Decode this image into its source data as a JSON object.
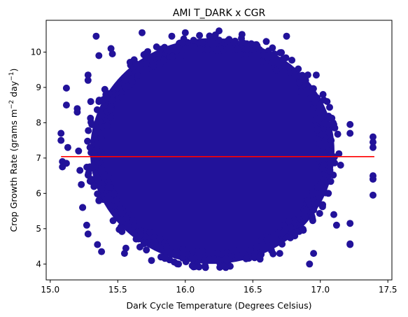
{
  "chart_data": {
    "type": "scatter",
    "title": "AMI T_DARK x CGR",
    "xlabel": "Dark Cycle Temperature (Degrees Celsius)",
    "ylabel_parts": {
      "main": "Crop Growth Rate (grams m",
      "exp1": "−2",
      "mid": " day",
      "exp2": "−1",
      "end": ")"
    },
    "xlim": [
      14.97,
      17.53
    ],
    "ylim": [
      3.55,
      10.9
    ],
    "xticks": [
      15.0,
      15.5,
      16.0,
      16.5,
      17.0,
      17.5
    ],
    "xtick_labels": [
      "15.0",
      "15.5",
      "16.0",
      "16.5",
      "17.0",
      "17.5"
    ],
    "yticks": [
      4,
      5,
      6,
      7,
      8,
      9,
      10
    ],
    "ytick_labels": [
      "4",
      "5",
      "6",
      "7",
      "8",
      "9",
      "10"
    ],
    "grid": false,
    "scatter_color": "#22129a",
    "cloud": {
      "center_x": 16.2,
      "center_y": 7.2,
      "x_extent": [
        15.08,
        17.4
      ],
      "y_extent": [
        3.87,
        10.6
      ]
    },
    "points": [
      [
        15.08,
        7.7
      ],
      [
        15.08,
        7.5
      ],
      [
        15.09,
        6.9
      ],
      [
        15.09,
        6.75
      ],
      [
        15.12,
        8.98
      ],
      [
        15.12,
        8.5
      ],
      [
        15.13,
        7.3
      ],
      [
        15.12,
        6.85
      ],
      [
        15.2,
        8.4
      ],
      [
        15.2,
        8.3
      ],
      [
        15.21,
        7.2
      ],
      [
        15.22,
        6.65
      ],
      [
        15.23,
        6.25
      ],
      [
        15.24,
        5.6
      ],
      [
        15.24,
        5.6
      ],
      [
        15.27,
        5.1
      ],
      [
        15.28,
        4.85
      ],
      [
        15.28,
        9.35
      ],
      [
        15.28,
        9.2
      ],
      [
        15.3,
        8.6
      ],
      [
        15.34,
        10.45
      ],
      [
        15.35,
        4.55
      ],
      [
        15.36,
        9.9
      ],
      [
        15.38,
        4.35
      ],
      [
        15.45,
        10.1
      ],
      [
        15.46,
        9.95
      ],
      [
        15.55,
        4.3
      ],
      [
        15.56,
        4.45
      ],
      [
        15.68,
        10.55
      ],
      [
        15.75,
        4.1
      ],
      [
        15.82,
        4.2
      ],
      [
        15.95,
        4.0
      ],
      [
        16.05,
        4.15
      ],
      [
        16.15,
        3.9
      ],
      [
        16.3,
        3.9
      ],
      [
        16.45,
        4.15
      ],
      [
        16.55,
        4.2
      ],
      [
        16.7,
        4.3
      ],
      [
        16.92,
        4.0
      ],
      [
        16.95,
        4.3
      ],
      [
        16.6,
        10.3
      ],
      [
        16.75,
        10.45
      ],
      [
        16.42,
        10.5
      ],
      [
        16.0,
        10.55
      ],
      [
        16.25,
        10.6
      ],
      [
        15.9,
        10.45
      ],
      [
        16.97,
        9.35
      ],
      [
        17.02,
        8.8
      ],
      [
        17.05,
        8.6
      ],
      [
        17.1,
        7.95
      ],
      [
        17.08,
        7.5
      ],
      [
        17.1,
        5.4
      ],
      [
        17.12,
        5.1
      ],
      [
        17.15,
        6.8
      ],
      [
        17.22,
        7.95
      ],
      [
        17.22,
        7.7
      ],
      [
        17.22,
        5.15
      ],
      [
        17.22,
        4.55
      ],
      [
        17.22,
        4.57
      ],
      [
        17.39,
        7.6
      ],
      [
        17.39,
        7.45
      ],
      [
        17.39,
        7.3
      ],
      [
        17.39,
        6.5
      ],
      [
        17.39,
        6.4
      ],
      [
        17.39,
        5.95
      ]
    ],
    "regression": {
      "x": [
        15.08,
        17.4
      ],
      "y": [
        7.04,
        7.04
      ],
      "color": "#ff0000"
    }
  }
}
